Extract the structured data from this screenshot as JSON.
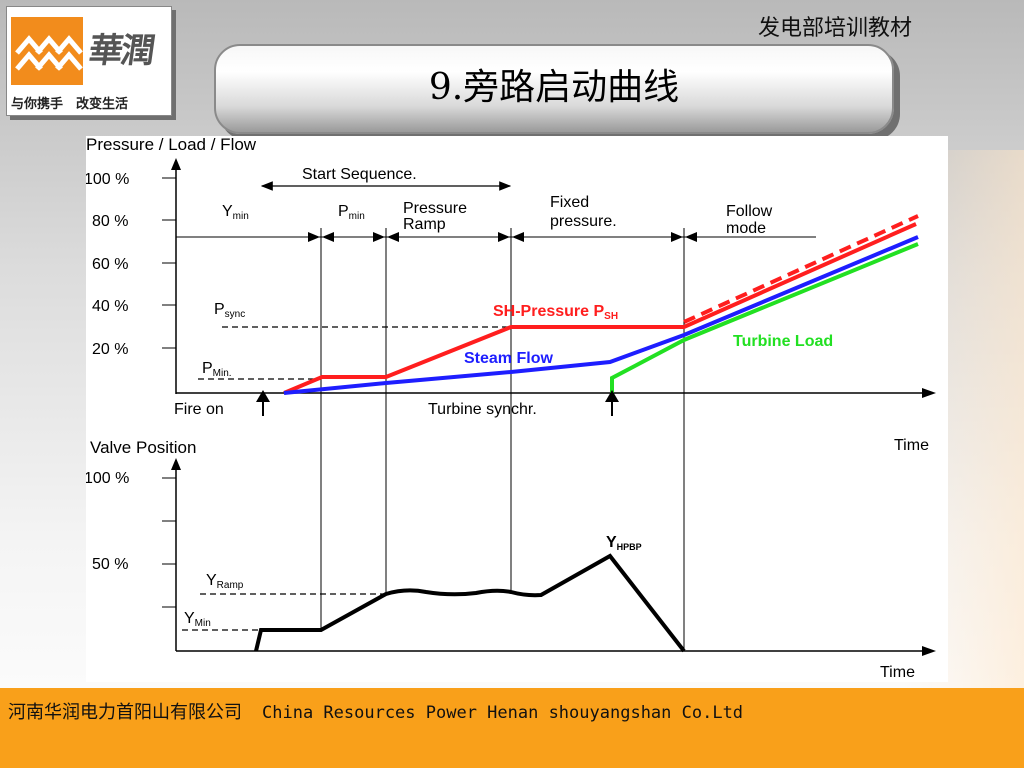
{
  "header": {
    "label": "发电部培训教材",
    "title": "9.旁路启动曲线"
  },
  "logo": {
    "brand": "華潤",
    "slogan": "与你携手　改变生活",
    "color": "#f28c1c"
  },
  "footer": {
    "company_cn": "河南华润电力首阳山有限公司",
    "company_en": "China Resources Power Henan shouyangshan Co.Ltd",
    "color": "#f9a01a"
  },
  "diagram": {
    "top": {
      "axis_title": "Pressure / Load / Flow",
      "ticks": [
        "100 %",
        "80 %",
        "60 %",
        "40 %",
        "20 %"
      ],
      "time_label": "Time",
      "phases": {
        "start_sequence": "Start Sequence.",
        "y_min": "Y",
        "y_min_sub": "min",
        "p_min": "P",
        "p_min_sub": "min",
        "pressure_ramp_1": "Pressure",
        "pressure_ramp_2": "Ramp",
        "fixed_pressure_1": "Fixed",
        "fixed_pressure_2": "pressure.",
        "follow_mode_1": "Follow",
        "follow_mode_2": "mode"
      },
      "levels": {
        "p_sync": "P",
        "p_sync_sub": "sync",
        "p_min": "P",
        "p_min_sub": "Min."
      },
      "events": {
        "fire_on": "Fire on",
        "turbine_synchr": "Turbine synchr."
      },
      "curves": {
        "sh_pressure": "SH-Pressure P",
        "sh_pressure_sub": "SH",
        "steam_flow": "Steam Flow",
        "turbine_load": "Turbine Load"
      }
    },
    "bottom": {
      "axis_title": "Valve Position",
      "ticks": [
        "100 %",
        "50 %"
      ],
      "time_label": "Time",
      "labels": {
        "y_hpbp": "Y",
        "y_hpbp_sub": "HPBP",
        "y_ramp": "Y",
        "y_ramp_sub": "Ramp",
        "y_min": "Y",
        "y_min_sub": "Min"
      }
    },
    "colors": {
      "sh_pressure": "#ff1e1e",
      "steam_flow": "#1e1eff",
      "turbine_load": "#22e022",
      "valve": "#000000"
    }
  }
}
